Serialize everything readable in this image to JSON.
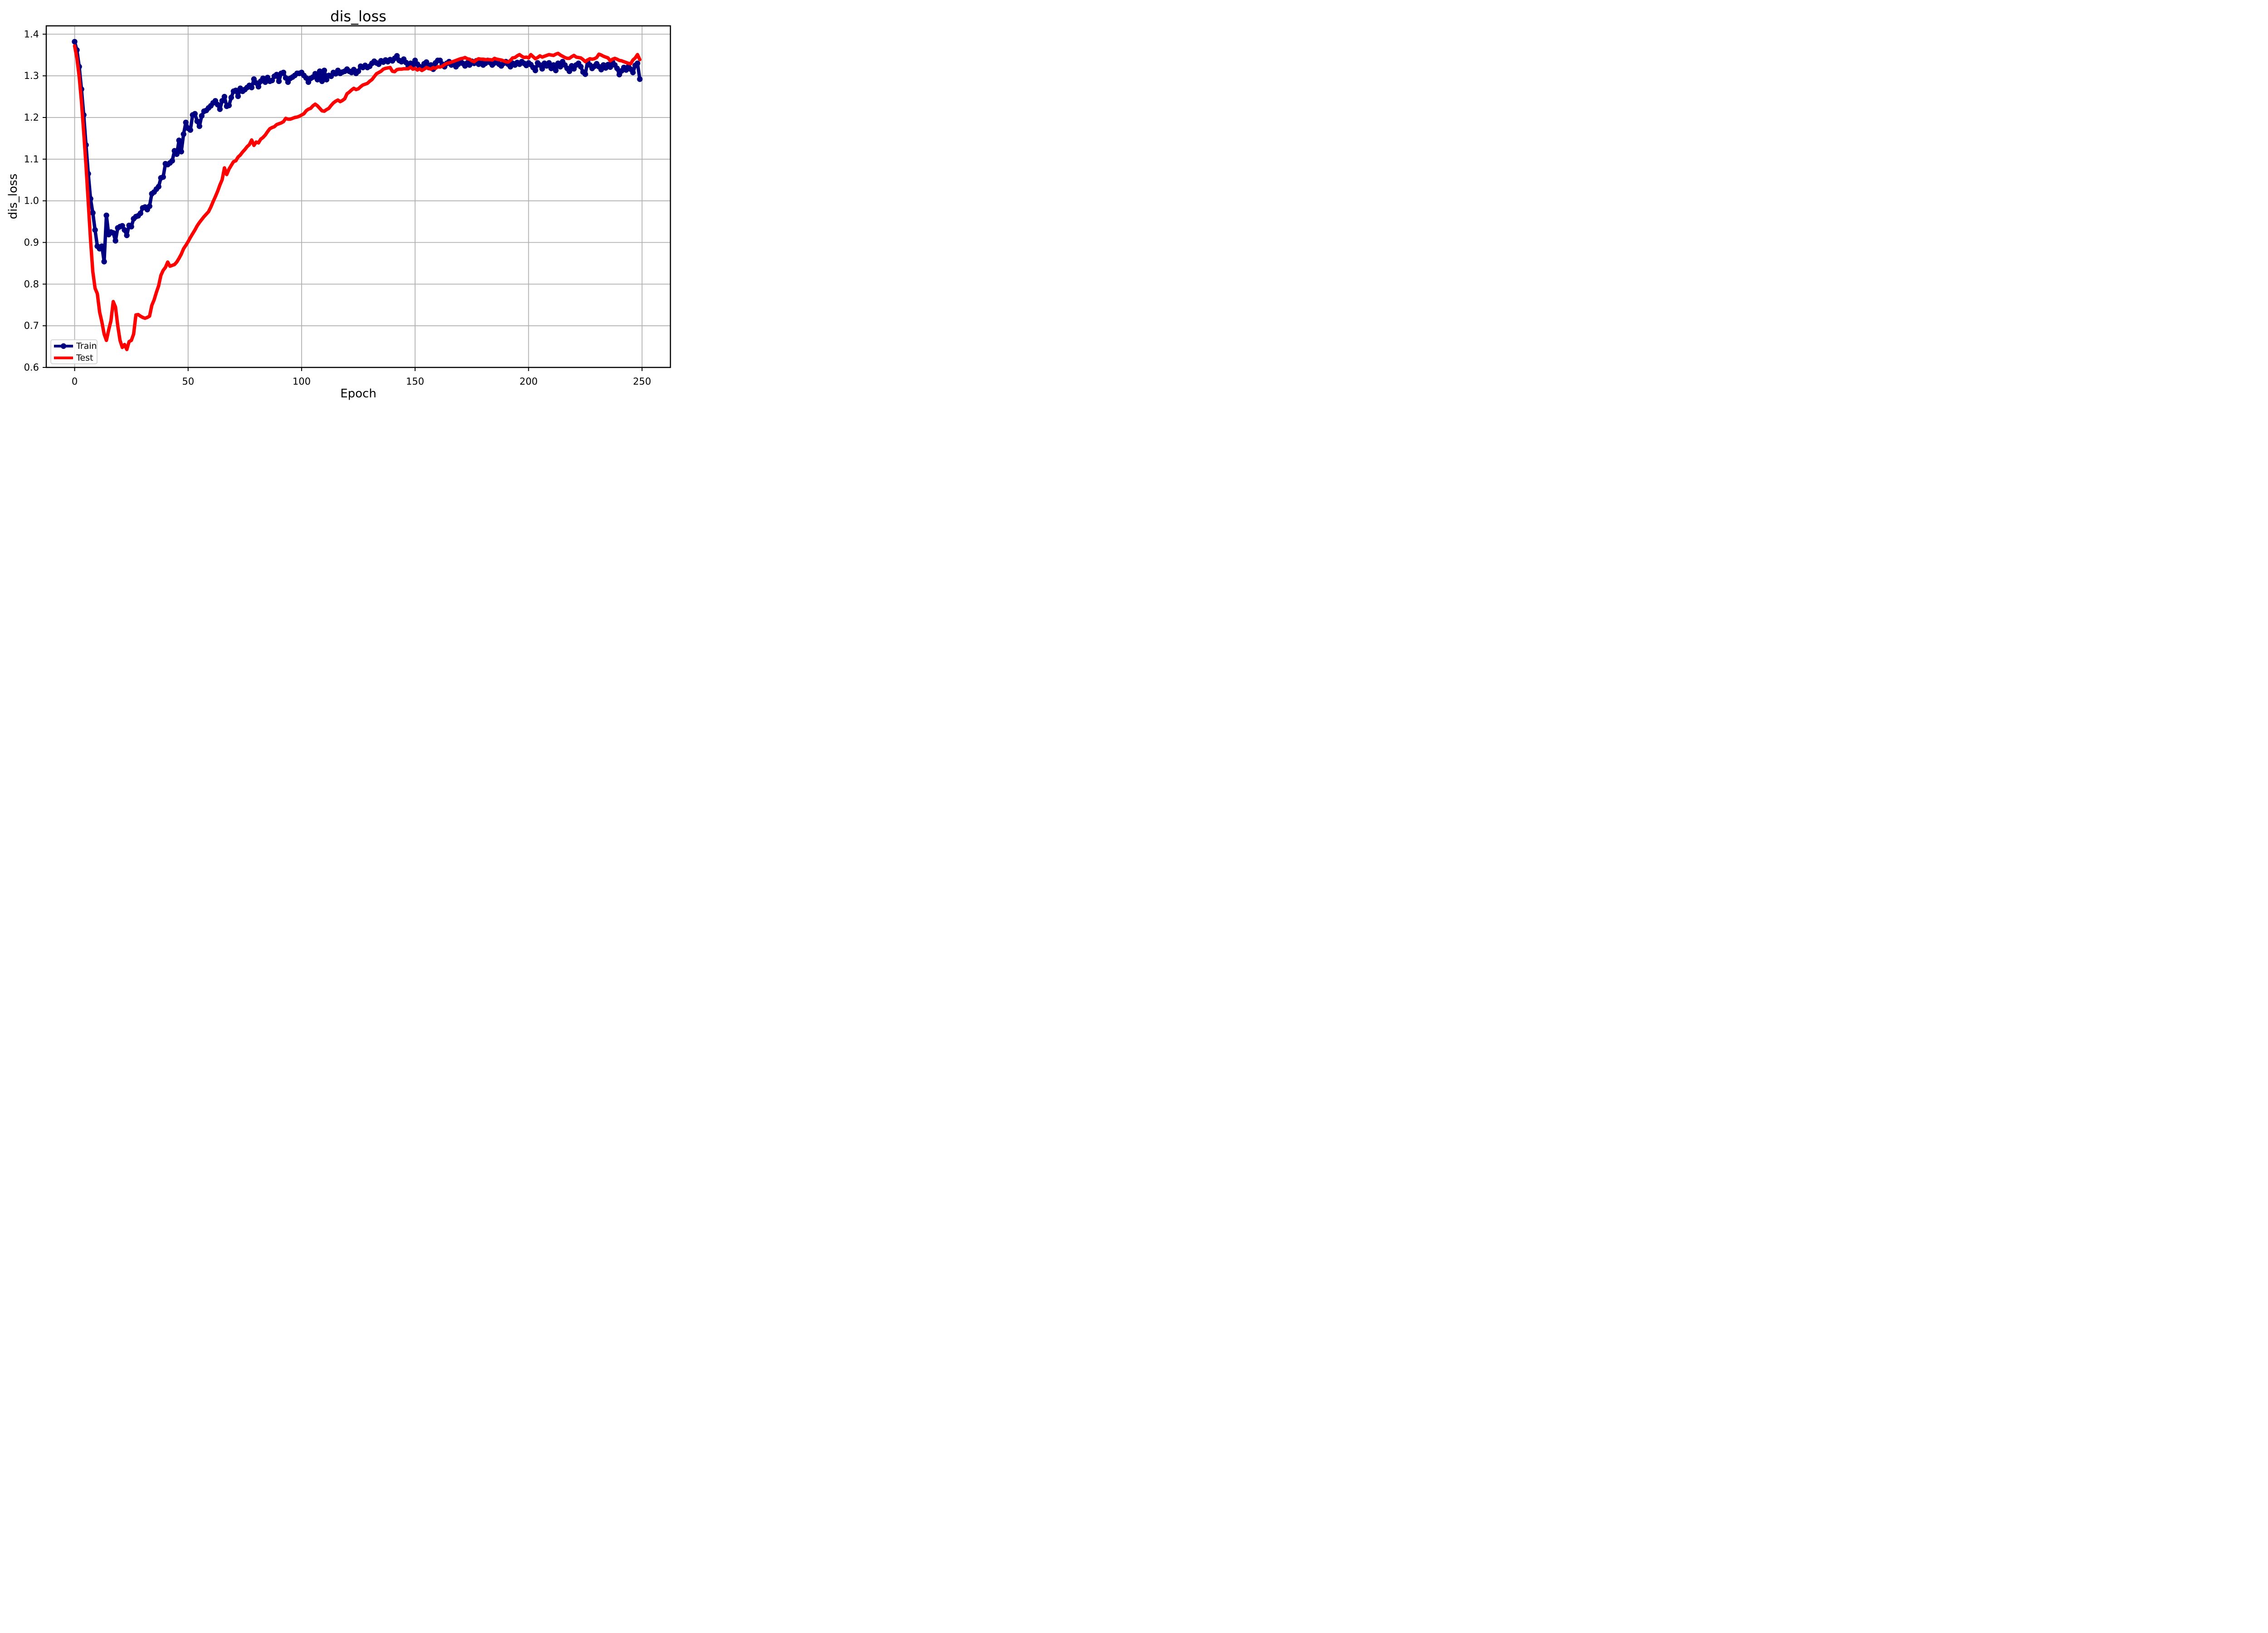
{
  "chart": {
    "background": "#ffffff",
    "grid_color": "#b0b0b0",
    "spine_color": "#000000",
    "text_color": "#000000",
    "legend_border_color": "#cccccc",
    "legend_background": "#ffffff"
  },
  "chart_data": {
    "type": "line",
    "title": "dis_loss",
    "xlabel": "Epoch",
    "ylabel": "dis_loss",
    "grid": true,
    "legend_position": "lower left",
    "xlim": [
      -12.5,
      262.5
    ],
    "ylim": [
      0.6,
      1.42
    ],
    "x_ticks": [
      0,
      50,
      100,
      150,
      200,
      250
    ],
    "y_ticks": [
      0.6,
      0.7,
      0.8,
      0.9,
      1.0,
      1.1,
      1.2,
      1.3,
      1.4
    ],
    "x": [
      0,
      1,
      2,
      3,
      4,
      5,
      6,
      7,
      8,
      9,
      10,
      11,
      12,
      13,
      14,
      15,
      16,
      17,
      18,
      19,
      20,
      21,
      22,
      23,
      24,
      25,
      26,
      27,
      28,
      29,
      30,
      31,
      32,
      33,
      34,
      35,
      36,
      37,
      38,
      39,
      40,
      41,
      42,
      43,
      44,
      45,
      46,
      47,
      48,
      49,
      50,
      51,
      52,
      53,
      54,
      55,
      56,
      57,
      58,
      59,
      60,
      61,
      62,
      63,
      64,
      65,
      66,
      67,
      68,
      69,
      70,
      71,
      72,
      73,
      74,
      75,
      76,
      77,
      78,
      79,
      80,
      81,
      82,
      83,
      84,
      85,
      86,
      87,
      88,
      89,
      90,
      91,
      92,
      93,
      94,
      95,
      96,
      97,
      98,
      99,
      100,
      101,
      102,
      103,
      104,
      105,
      106,
      107,
      108,
      109,
      110,
      111,
      112,
      113,
      114,
      115,
      116,
      117,
      118,
      119,
      120,
      121,
      122,
      123,
      124,
      125,
      126,
      127,
      128,
      129,
      130,
      131,
      132,
      133,
      134,
      135,
      136,
      137,
      138,
      139,
      140,
      141,
      142,
      143,
      144,
      145,
      146,
      147,
      148,
      149,
      150,
      151,
      152,
      153,
      154,
      155,
      156,
      157,
      158,
      159,
      160,
      161,
      162,
      163,
      164,
      165,
      166,
      167,
      168,
      169,
      170,
      171,
      172,
      173,
      174,
      175,
      176,
      177,
      178,
      179,
      180,
      181,
      182,
      183,
      184,
      185,
      186,
      187,
      188,
      189,
      190,
      191,
      192,
      193,
      194,
      195,
      196,
      197,
      198,
      199,
      200,
      201,
      202,
      203,
      204,
      205,
      206,
      207,
      208,
      209,
      210,
      211,
      212,
      213,
      214,
      215,
      216,
      217,
      218,
      219,
      220,
      221,
      222,
      223,
      224,
      225,
      226,
      227,
      228,
      229,
      230,
      231,
      232,
      233,
      234,
      235,
      236,
      237,
      238,
      239,
      240,
      241,
      242,
      243,
      244,
      245,
      246,
      247,
      248,
      249
    ],
    "series": [
      {
        "name": "Train",
        "color": "#000080",
        "marker": "circle",
        "marker_size": 6.2,
        "line_width": 7.5,
        "values": [
          1.382,
          1.362,
          1.322,
          1.268,
          1.206,
          1.134,
          1.065,
          1.005,
          0.971,
          0.93,
          0.891,
          0.885,
          0.891,
          0.854,
          0.965,
          0.919,
          0.925,
          0.923,
          0.904,
          0.935,
          0.938,
          0.94,
          0.93,
          0.917,
          0.941,
          0.938,
          0.957,
          0.962,
          0.964,
          0.97,
          0.983,
          0.985,
          0.979,
          0.987,
          1.017,
          1.021,
          1.028,
          1.034,
          1.055,
          1.057,
          1.089,
          1.087,
          1.091,
          1.096,
          1.12,
          1.112,
          1.145,
          1.118,
          1.16,
          1.188,
          1.174,
          1.17,
          1.206,
          1.209,
          1.191,
          1.179,
          1.204,
          1.215,
          1.217,
          1.223,
          1.228,
          1.235,
          1.24,
          1.231,
          1.22,
          1.24,
          1.25,
          1.227,
          1.229,
          1.248,
          1.263,
          1.265,
          1.251,
          1.27,
          1.263,
          1.267,
          1.272,
          1.277,
          1.272,
          1.292,
          1.283,
          1.274,
          1.287,
          1.294,
          1.285,
          1.296,
          1.287,
          1.289,
          1.299,
          1.303,
          1.287,
          1.306,
          1.308,
          1.295,
          1.285,
          1.294,
          1.297,
          1.301,
          1.306,
          1.306,
          1.308,
          1.301,
          1.295,
          1.285,
          1.294,
          1.297,
          1.305,
          1.291,
          1.311,
          1.287,
          1.313,
          1.291,
          1.301,
          1.299,
          1.308,
          1.305,
          1.313,
          1.306,
          1.309,
          1.311,
          1.316,
          1.311,
          1.308,
          1.315,
          1.306,
          1.311,
          1.323,
          1.32,
          1.325,
          1.32,
          1.323,
          1.33,
          1.335,
          1.331,
          1.328,
          1.336,
          1.333,
          1.338,
          1.334,
          1.339,
          1.336,
          1.342,
          1.348,
          1.337,
          1.334,
          1.34,
          1.332,
          1.324,
          1.33,
          1.32,
          1.337,
          1.328,
          1.322,
          1.316,
          1.329,
          1.333,
          1.32,
          1.326,
          1.316,
          1.331,
          1.337,
          1.337,
          1.328,
          1.322,
          1.33,
          1.334,
          1.326,
          1.331,
          1.322,
          1.328,
          1.335,
          1.33,
          1.324,
          1.331,
          1.326,
          1.335,
          1.33,
          1.336,
          1.328,
          1.333,
          1.326,
          1.33,
          1.337,
          1.332,
          1.326,
          1.331,
          1.336,
          1.328,
          1.324,
          1.33,
          1.334,
          1.328,
          1.322,
          1.33,
          1.326,
          1.332,
          1.328,
          1.334,
          1.33,
          1.325,
          1.331,
          1.327,
          1.32,
          1.313,
          1.331,
          1.326,
          1.317,
          1.33,
          1.324,
          1.331,
          1.318,
          1.326,
          1.313,
          1.33,
          1.322,
          1.334,
          1.326,
          1.318,
          1.311,
          1.324,
          1.317,
          1.326,
          1.33,
          1.322,
          1.309,
          1.304,
          1.335,
          1.326,
          1.318,
          1.323,
          1.329,
          1.322,
          1.315,
          1.326,
          1.319,
          1.327,
          1.321,
          1.333,
          1.326,
          1.318,
          1.303,
          1.312,
          1.32,
          1.314,
          1.322,
          1.316,
          1.308,
          1.325,
          1.33,
          1.292
        ]
      },
      {
        "name": "Test",
        "color": "#ff0000",
        "marker": "none",
        "line_width": 7.5,
        "values": [
          1.372,
          1.343,
          1.298,
          1.238,
          1.164,
          1.085,
          0.996,
          0.906,
          0.83,
          0.79,
          0.777,
          0.733,
          0.709,
          0.68,
          0.665,
          0.69,
          0.712,
          0.758,
          0.745,
          0.7,
          0.665,
          0.648,
          0.655,
          0.643,
          0.662,
          0.665,
          0.68,
          0.726,
          0.727,
          0.723,
          0.72,
          0.718,
          0.72,
          0.723,
          0.749,
          0.762,
          0.78,
          0.796,
          0.821,
          0.833,
          0.84,
          0.853,
          0.843,
          0.845,
          0.847,
          0.853,
          0.862,
          0.872,
          0.885,
          0.893,
          0.902,
          0.912,
          0.921,
          0.93,
          0.94,
          0.948,
          0.955,
          0.962,
          0.968,
          0.974,
          0.985,
          0.998,
          1.01,
          1.023,
          1.038,
          1.051,
          1.079,
          1.063,
          1.076,
          1.085,
          1.094,
          1.096,
          1.105,
          1.11,
          1.117,
          1.123,
          1.13,
          1.135,
          1.146,
          1.133,
          1.141,
          1.139,
          1.148,
          1.152,
          1.158,
          1.166,
          1.173,
          1.176,
          1.178,
          1.183,
          1.185,
          1.187,
          1.19,
          1.198,
          1.196,
          1.196,
          1.198,
          1.2,
          1.201,
          1.203,
          1.206,
          1.209,
          1.216,
          1.22,
          1.222,
          1.228,
          1.232,
          1.228,
          1.222,
          1.216,
          1.215,
          1.219,
          1.222,
          1.229,
          1.235,
          1.239,
          1.242,
          1.238,
          1.241,
          1.245,
          1.257,
          1.261,
          1.266,
          1.27,
          1.267,
          1.269,
          1.274,
          1.278,
          1.28,
          1.282,
          1.287,
          1.291,
          1.298,
          1.305,
          1.308,
          1.311,
          1.316,
          1.318,
          1.319,
          1.32,
          1.311,
          1.31,
          1.315,
          1.316,
          1.316,
          1.317,
          1.317,
          1.317,
          1.321,
          1.316,
          1.318,
          1.314,
          1.317,
          1.313,
          1.316,
          1.32,
          1.318,
          1.316,
          1.32,
          1.318,
          1.322,
          1.321,
          1.323,
          1.327,
          1.33,
          1.331,
          1.333,
          1.335,
          1.337,
          1.339,
          1.341,
          1.342,
          1.344,
          1.341,
          1.34,
          1.336,
          1.334,
          1.338,
          1.341,
          1.34,
          1.34,
          1.339,
          1.339,
          1.339,
          1.338,
          1.342,
          1.34,
          1.339,
          1.338,
          1.336,
          1.334,
          1.333,
          1.337,
          1.343,
          1.344,
          1.348,
          1.351,
          1.347,
          1.344,
          1.345,
          1.343,
          1.351,
          1.346,
          1.341,
          1.344,
          1.348,
          1.345,
          1.347,
          1.349,
          1.351,
          1.35,
          1.349,
          1.352,
          1.354,
          1.35,
          1.347,
          1.344,
          1.342,
          1.342,
          1.346,
          1.349,
          1.345,
          1.344,
          1.343,
          1.339,
          1.334,
          1.338,
          1.341,
          1.34,
          1.341,
          1.344,
          1.352,
          1.35,
          1.347,
          1.345,
          1.343,
          1.336,
          1.34,
          1.342,
          1.34,
          1.337,
          1.336,
          1.334,
          1.332,
          1.33,
          1.329,
          1.338,
          1.343,
          1.351,
          1.339
        ]
      }
    ]
  }
}
